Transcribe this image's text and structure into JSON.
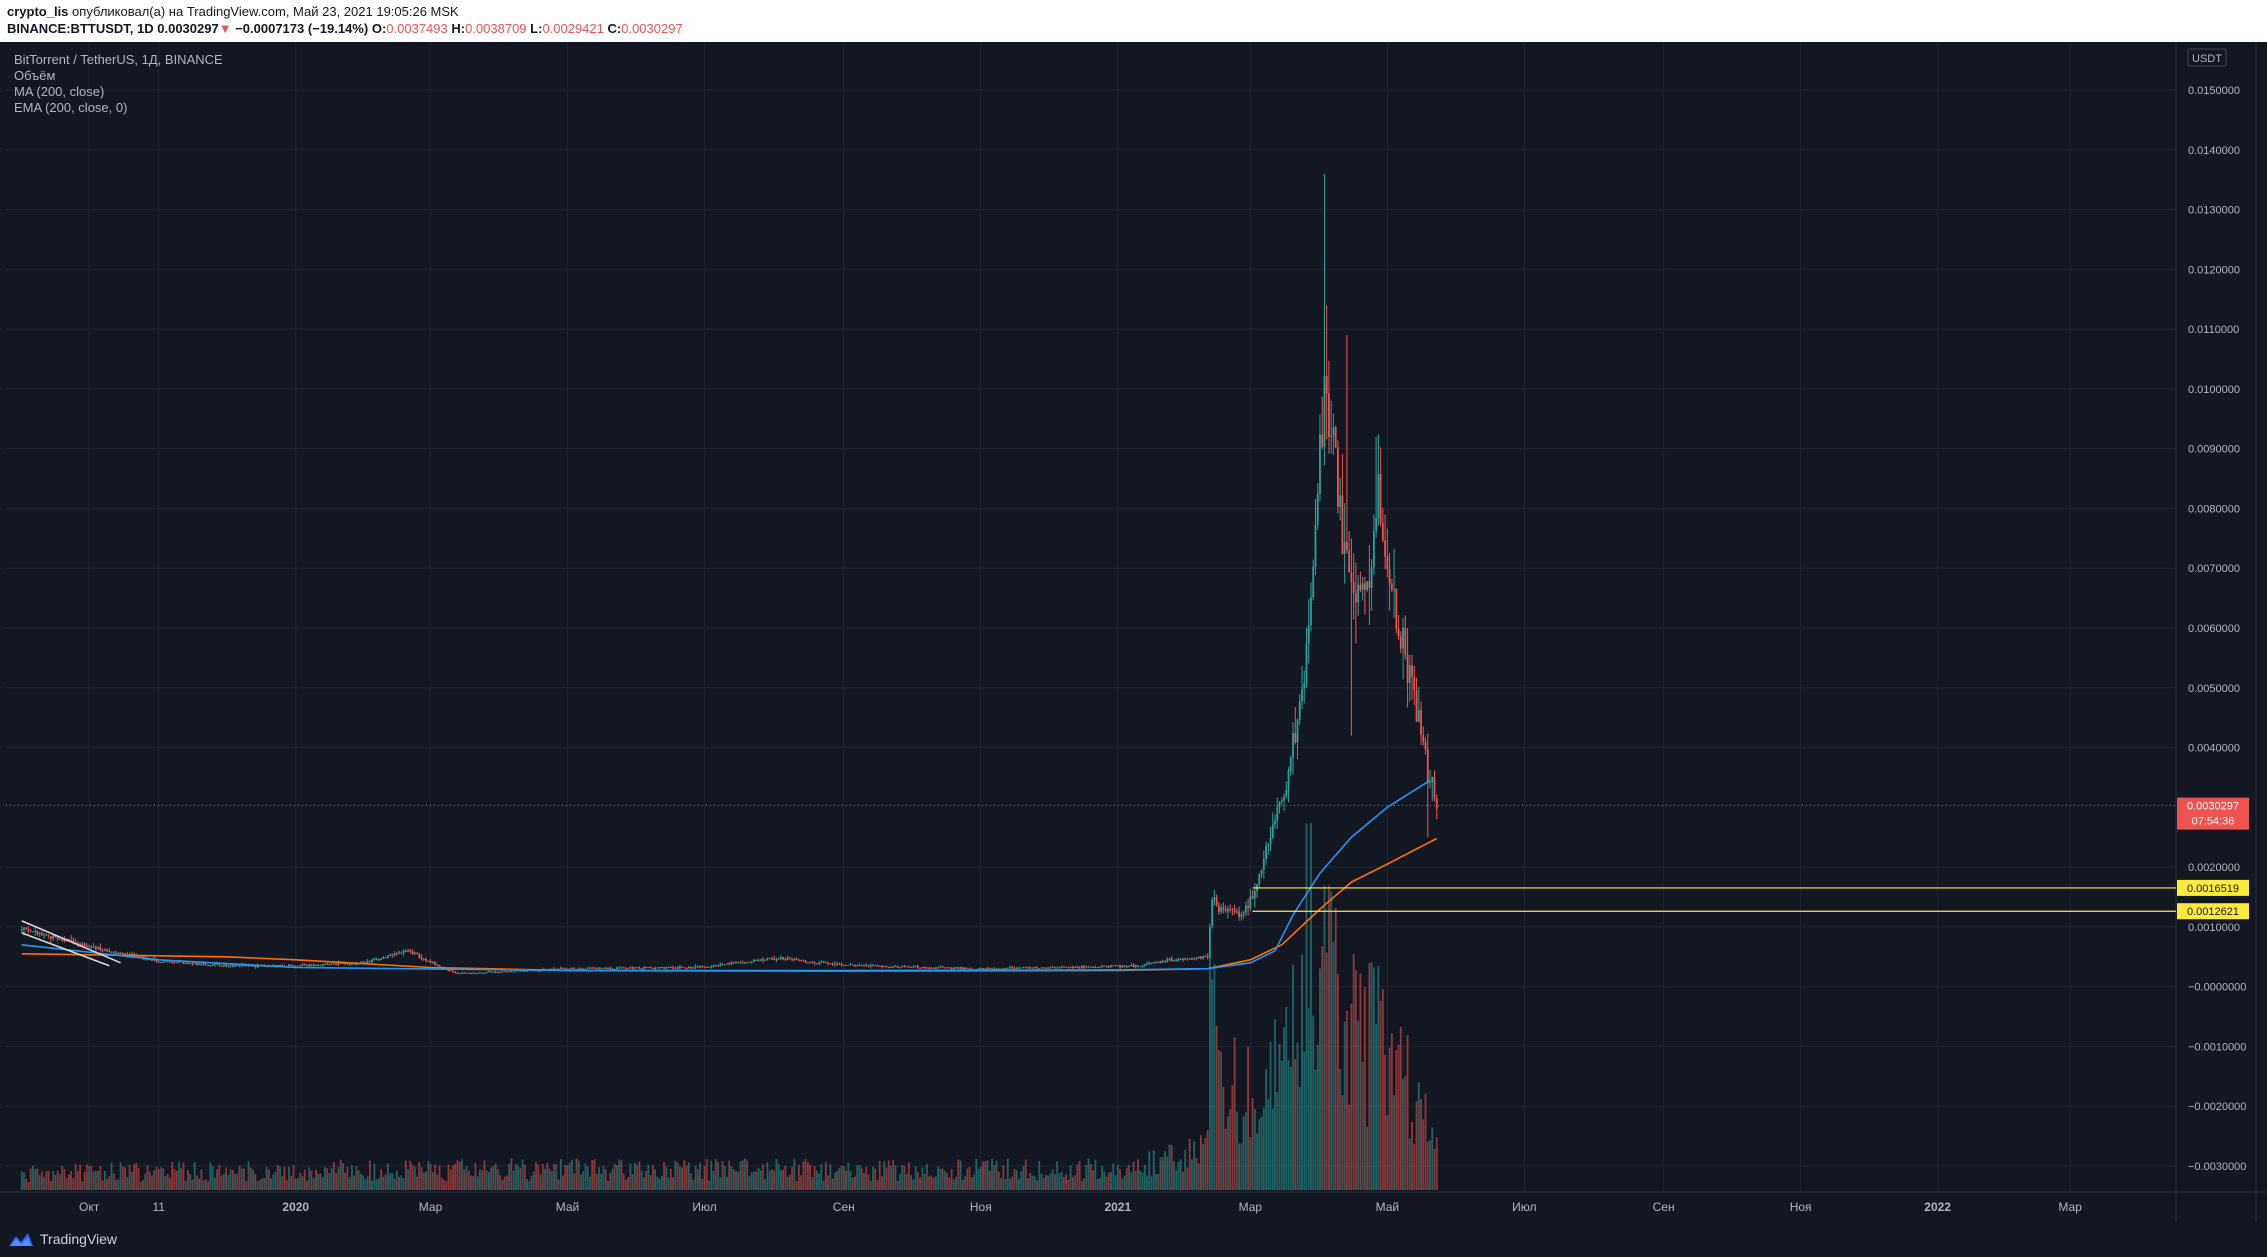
{
  "header": {
    "author": "crypto_lis",
    "published_text": "опубликовал(а) на TradingView.com, Май 23, 2021 19:05:26 MSK",
    "symbol": "BINANCE:BTTUSDT, 1D",
    "last": "0.0030297",
    "change": "−0.0007173 (−19.14%)",
    "o_label": "O:",
    "o_value": "0.0037493",
    "h_label": "H:",
    "h_value": "0.0038709",
    "l_label": "L:",
    "l_value": "0.0029421",
    "c_label": "C:",
    "c_value": "0.0030297"
  },
  "legend": {
    "title": "BitTorrent / TetherUS, 1Д, BINANCE",
    "volume": "Объём",
    "ma": "MA (200, close)",
    "ema": "EMA (200, close, 0)"
  },
  "footer": {
    "brand": "TradingView",
    "icon": "tradingview-logo-icon"
  },
  "colors": {
    "background": "#131722",
    "up": "#26a69a",
    "down": "#ef5350",
    "ma": "#2196f3",
    "ema": "#ff6d00",
    "level": "#ffeb3b",
    "grid": "#1f2430"
  },
  "chart_data": {
    "type": "candlestick",
    "currency_label": "USDT",
    "y_ticks": [
      "0.0150000",
      "0.0140000",
      "0.0130000",
      "0.0120000",
      "0.0110000",
      "0.0100000",
      "0.0090000",
      "0.0080000",
      "0.0070000",
      "0.0060000",
      "0.0050000",
      "0.0040000",
      "0.0020000",
      "0.0010000",
      "−0.0000000",
      "−0.0010000",
      "−0.0020000",
      "−0.0030000"
    ],
    "y_tick_values": [
      0.015,
      0.014,
      0.013,
      0.012,
      0.011,
      0.01,
      0.009,
      0.008,
      0.007,
      0.006,
      0.005,
      0.004,
      0.002,
      0.001,
      0.0,
      -0.001,
      -0.002,
      -0.003
    ],
    "x_ticks": [
      "Окт",
      "11",
      "2020",
      "Мар",
      "Май",
      "Июл",
      "Сен",
      "Ноя",
      "2021",
      "Мар",
      "Май",
      "Июл",
      "Сен",
      "Ноя",
      "2022",
      "Мар"
    ],
    "x_tick_dates": [
      "2019-10-01",
      "2019-11-01",
      "2020-01-01",
      "2020-03-01",
      "2020-05-01",
      "2020-07-01",
      "2020-09-01",
      "2020-11-01",
      "2021-01-01",
      "2021-03-01",
      "2021-05-01",
      "2021-07-01",
      "2021-09-01",
      "2021-11-01",
      "2022-01-01",
      "2022-03-01"
    ],
    "bold_x_ticks": [
      "2020",
      "2021",
      "2022"
    ],
    "last_price": "0.0030297",
    "last_price_value": 0.0030297,
    "countdown": "07:54:36",
    "levels": [
      {
        "label": "0.0016519",
        "value": 0.0016519,
        "start_date": "2021-03-02"
      },
      {
        "label": "0.0012621",
        "value": 0.0012621,
        "start_date": "2021-03-02"
      }
    ],
    "price_path": [
      [
        "2019-09-01",
        0.00095
      ],
      [
        "2019-10-01",
        0.00068
      ],
      [
        "2019-11-01",
        0.00042
      ],
      [
        "2019-12-01",
        0.00035
      ],
      [
        "2020-01-01",
        0.00035
      ],
      [
        "2020-02-01",
        0.0004
      ],
      [
        "2020-02-20",
        0.0006
      ],
      [
        "2020-03-12",
        0.00022
      ],
      [
        "2020-04-01",
        0.00025
      ],
      [
        "2020-05-01",
        0.0003
      ],
      [
        "2020-07-01",
        0.00033
      ],
      [
        "2020-08-01",
        0.00048
      ],
      [
        "2020-09-01",
        0.00036
      ],
      [
        "2020-11-01",
        0.0003
      ],
      [
        "2020-12-01",
        0.00032
      ],
      [
        "2021-01-10",
        0.00035
      ],
      [
        "2021-01-25",
        0.00045
      ],
      [
        "2021-02-10",
        0.0005
      ],
      [
        "2021-02-12",
        0.0015
      ],
      [
        "2021-02-15",
        0.0013
      ],
      [
        "2021-02-25",
        0.0012
      ],
      [
        "2021-03-02",
        0.0015
      ],
      [
        "2021-03-10",
        0.0025
      ],
      [
        "2021-03-18",
        0.0035
      ],
      [
        "2021-03-26",
        0.0055
      ],
      [
        "2021-04-01",
        0.009
      ],
      [
        "2021-04-03",
        0.01
      ],
      [
        "2021-04-06",
        0.0095
      ],
      [
        "2021-04-10",
        0.008
      ],
      [
        "2021-04-13",
        0.007
      ],
      [
        "2021-04-18",
        0.0065
      ],
      [
        "2021-04-23",
        0.0068
      ],
      [
        "2021-04-27",
        0.0082
      ],
      [
        "2021-05-01",
        0.007
      ],
      [
        "2021-05-06",
        0.006
      ],
      [
        "2021-05-12",
        0.005
      ],
      [
        "2021-05-18",
        0.0038
      ],
      [
        "2021-05-23",
        0.0030297
      ]
    ],
    "spikes": [
      [
        "2021-04-03",
        0.0136
      ],
      [
        "2021-04-04",
        0.0114
      ],
      [
        "2021-04-13",
        0.0109
      ],
      [
        "2021-04-26",
        0.0092
      ],
      [
        "2021-04-15",
        0.0042
      ],
      [
        "2021-05-19",
        0.0025
      ]
    ],
    "ma_200": [
      [
        "2019-09-01",
        0.0007
      ],
      [
        "2019-11-01",
        0.00045
      ],
      [
        "2020-01-01",
        0.00032
      ],
      [
        "2020-05-01",
        0.00027
      ],
      [
        "2020-09-01",
        0.00027
      ],
      [
        "2021-01-01",
        0.00028
      ],
      [
        "2021-02-10",
        0.0003
      ],
      [
        "2021-03-01",
        0.0004
      ],
      [
        "2021-03-12",
        0.0006
      ],
      [
        "2021-03-20",
        0.0012
      ],
      [
        "2021-04-01",
        0.0019
      ],
      [
        "2021-04-15",
        0.0025
      ],
      [
        "2021-05-01",
        0.003
      ],
      [
        "2021-05-20",
        0.00345
      ]
    ],
    "ema_200": [
      [
        "2019-09-01",
        0.00055
      ],
      [
        "2019-12-01",
        0.0005
      ],
      [
        "2020-01-01",
        0.00045
      ],
      [
        "2020-03-01",
        0.00032
      ],
      [
        "2020-05-01",
        0.00027
      ],
      [
        "2020-09-01",
        0.00026
      ],
      [
        "2021-01-01",
        0.00027
      ],
      [
        "2021-02-10",
        0.0003
      ],
      [
        "2021-03-01",
        0.00045
      ],
      [
        "2021-03-15",
        0.0007
      ],
      [
        "2021-04-01",
        0.0013
      ],
      [
        "2021-04-15",
        0.00175
      ],
      [
        "2021-05-01",
        0.00205
      ],
      [
        "2021-05-23",
        0.00248
      ]
    ],
    "white_lines": [
      [
        [
          "2019-09-01",
          0.0011
        ],
        [
          "2019-10-15",
          0.0004
        ]
      ],
      [
        [
          "2019-09-01",
          0.0009
        ],
        [
          "2019-10-10",
          0.00035
        ]
      ]
    ],
    "volume_profile": [
      [
        "2019-09-01",
        0.05
      ],
      [
        "2020-02-01",
        0.06
      ],
      [
        "2021-01-01",
        0.06
      ],
      [
        "2021-02-10",
        0.12
      ],
      [
        "2021-02-12",
        1.0
      ],
      [
        "2021-02-14",
        0.45
      ],
      [
        "2021-02-25",
        0.25
      ],
      [
        "2021-03-10",
        0.35
      ],
      [
        "2021-03-25",
        0.7
      ],
      [
        "2021-04-01",
        0.8
      ],
      [
        "2021-04-10",
        0.55
      ],
      [
        "2021-04-20",
        0.4
      ],
      [
        "2021-04-27",
        0.5
      ],
      [
        "2021-05-10",
        0.3
      ],
      [
        "2021-05-23",
        0.12
      ]
    ]
  }
}
